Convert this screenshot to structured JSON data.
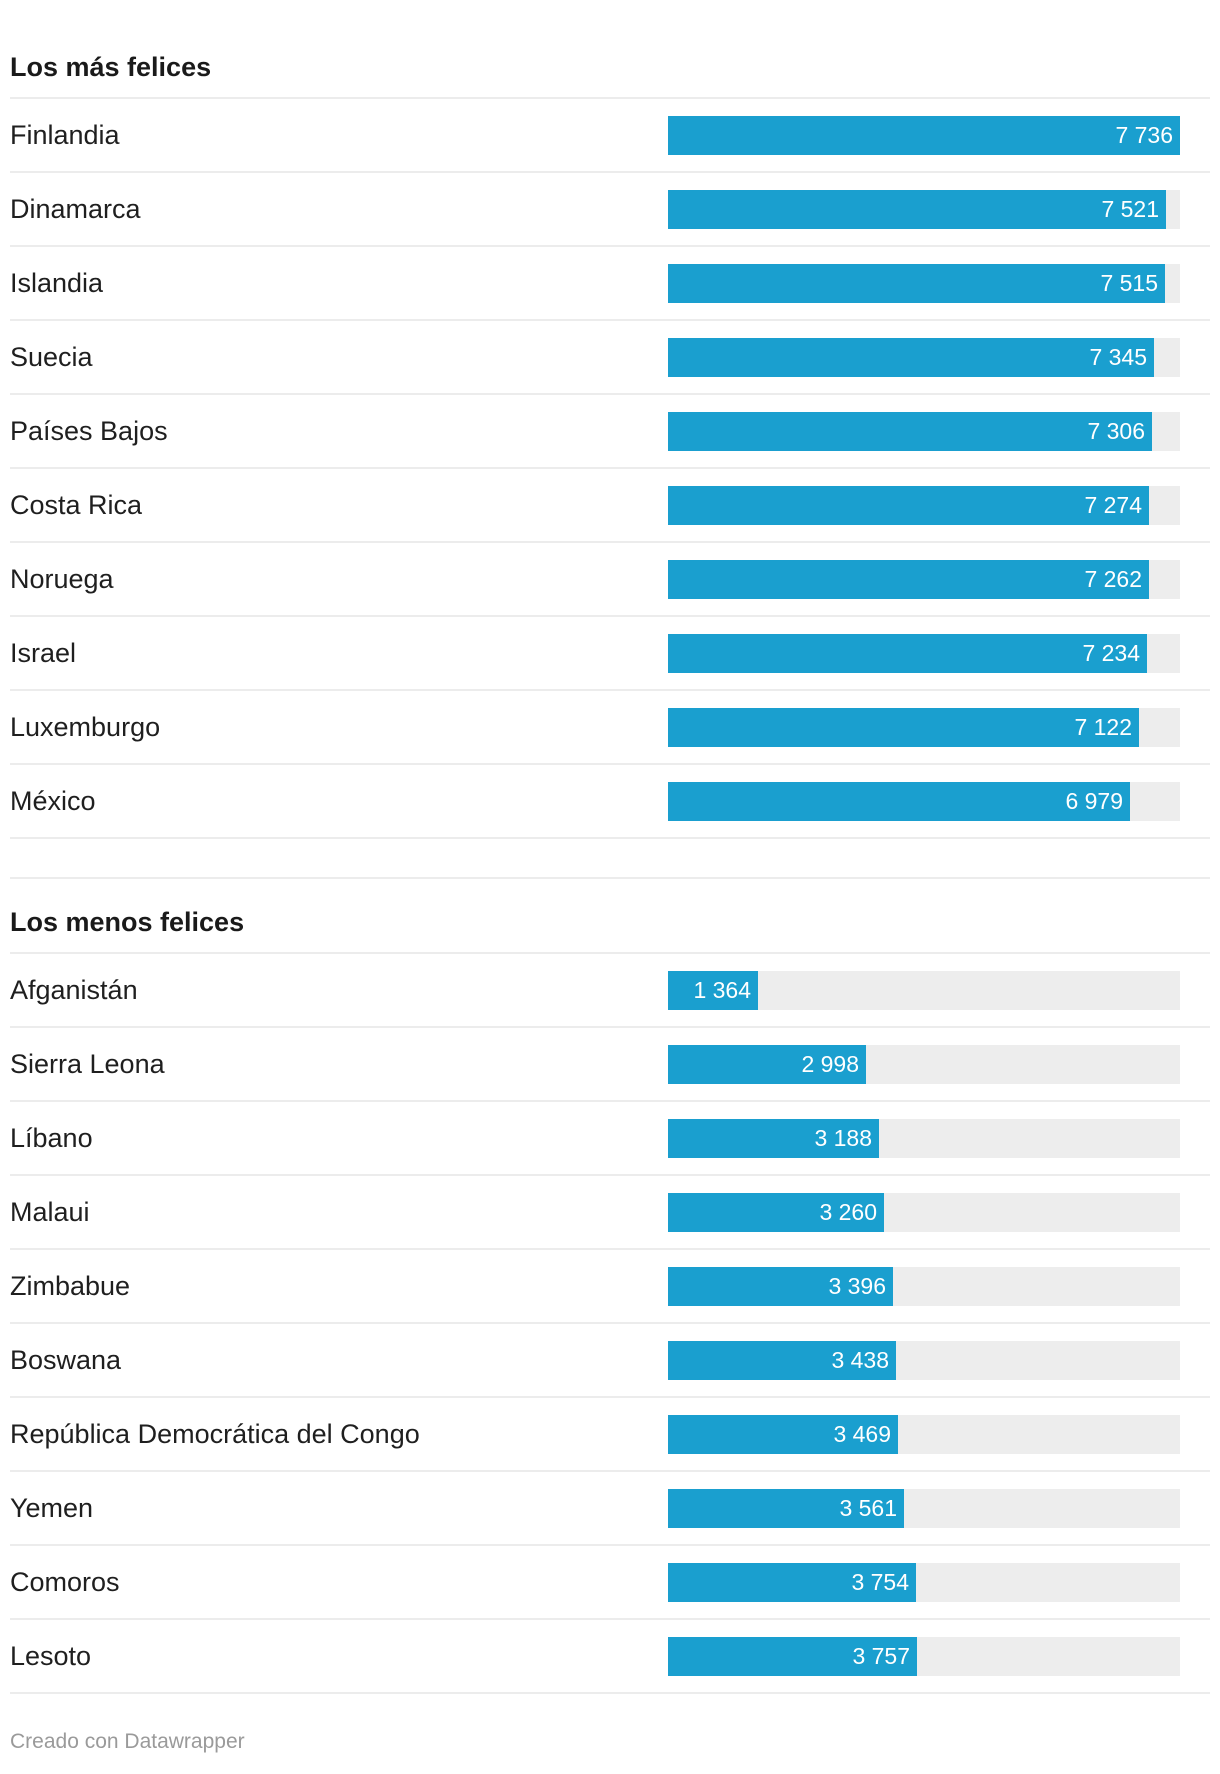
{
  "chart_data": {
    "type": "bar",
    "orientation": "horizontal",
    "xlim": [
      0,
      7736
    ],
    "groups": [
      {
        "title": "Los más felices",
        "categories": [
          "Finlandia",
          "Dinamarca",
          "Islandia",
          "Suecia",
          "Países Bajos",
          "Costa Rica",
          "Noruega",
          "Israel",
          "Luxemburgo",
          "México"
        ],
        "values": [
          7736,
          7521,
          7515,
          7345,
          7306,
          7274,
          7262,
          7234,
          7122,
          6979
        ],
        "labels": [
          "7 736",
          "7 521",
          "7 515",
          "7 345",
          "7 306",
          "7 274",
          "7 262",
          "7 234",
          "7 122",
          "6 979"
        ]
      },
      {
        "title": "Los menos felices",
        "categories": [
          "Afganistán",
          "Sierra Leona",
          "Líbano",
          "Malaui",
          "Zimbabue",
          "Boswana",
          "República Democrática del Congo",
          "Yemen",
          "Comoros",
          "Lesoto"
        ],
        "values": [
          1364,
          2998,
          3188,
          3260,
          3396,
          3438,
          3469,
          3561,
          3754,
          3757
        ],
        "labels": [
          "1 364",
          "2 998",
          "3 188",
          "3 260",
          "3 396",
          "3 438",
          "3 469",
          "3 561",
          "3 754",
          "3 757"
        ]
      }
    ],
    "bar_color": "#1a9fcf",
    "track_color": "#ededed",
    "grid": false,
    "legend": "none"
  },
  "footer": {
    "credit": "Creado con Datawrapper"
  }
}
